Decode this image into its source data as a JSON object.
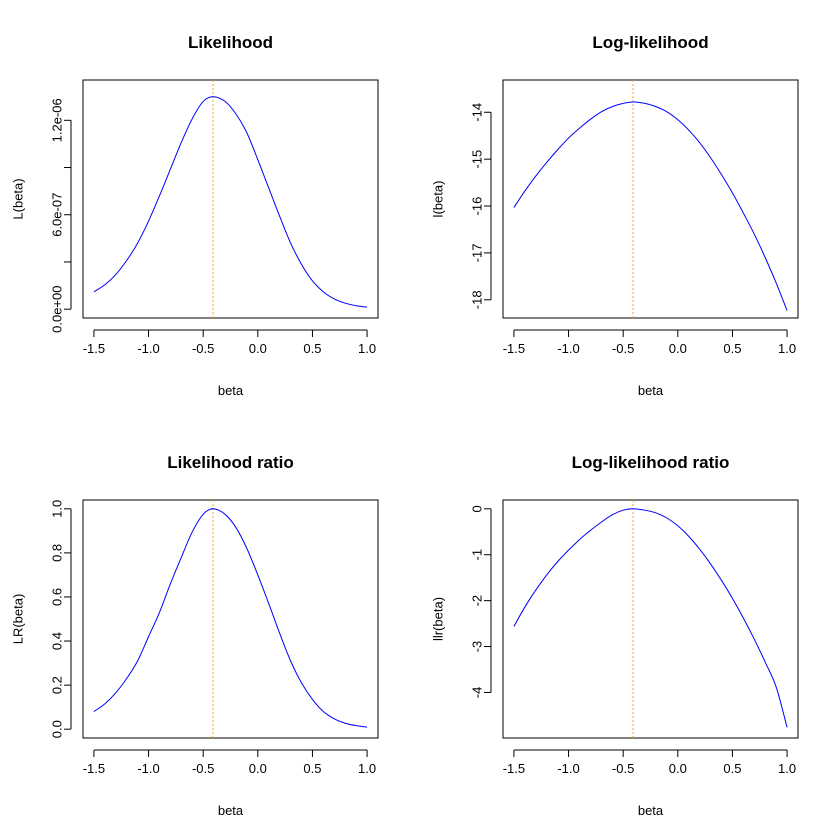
{
  "colors": {
    "curve": "#0000ff",
    "mle_line": "#ffa500"
  },
  "chart_data": [
    {
      "type": "line",
      "title": "Likelihood",
      "xlabel": "beta",
      "ylabel": "L(beta)",
      "xlim": [
        -1.5,
        1.0
      ],
      "ylim": [
        0,
        1.4e-06
      ],
      "x_ticks": [
        -1.5,
        -1.0,
        -0.5,
        0.0,
        0.5,
        1.0
      ],
      "x_tick_labels": [
        "-1.5",
        "-1.0",
        "-0.5",
        "0.0",
        "0.5",
        "1.0"
      ],
      "y_ticks": [
        0,
        3e-07,
        6e-07,
        9e-07,
        1.2e-06
      ],
      "y_tick_labels": [
        "0.0e+00",
        "",
        "6.0e-07",
        "",
        "1.2e-06"
      ],
      "vline_x": -0.41,
      "grid": false,
      "series": [
        {
          "x": [
            -1.5,
            -1.4,
            -1.3,
            -1.2,
            -1.1,
            -1.0,
            -0.9,
            -0.8,
            -0.7,
            -0.6,
            -0.5,
            -0.41,
            -0.3,
            -0.2,
            -0.1,
            0.0,
            0.1,
            0.2,
            0.3,
            0.4,
            0.5,
            0.6,
            0.7,
            0.8,
            0.9,
            1.0
          ],
          "y": [
            1.1e-07,
            1.55e-07,
            2.2e-07,
            3.1e-07,
            4.2e-07,
            5.6e-07,
            7.2e-07,
            8.9e-07,
            1.06e-06,
            1.21e-06,
            1.32e-06,
            1.35e-06,
            1.32e-06,
            1.24e-06,
            1.12e-06,
            9.5e-07,
            7.7e-07,
            5.9e-07,
            4.2e-07,
            2.85e-07,
            1.8e-07,
            1.1e-07,
            6.5e-08,
            3.8e-08,
            2.2e-08,
            1.3e-08
          ]
        }
      ]
    },
    {
      "type": "line",
      "title": "Log-likelihood",
      "xlabel": "beta",
      "ylabel": "l(beta)",
      "xlim": [
        -1.5,
        1.0
      ],
      "ylim": [
        -18.2,
        -13.5
      ],
      "x_ticks": [
        -1.5,
        -1.0,
        -0.5,
        0.0,
        0.5,
        1.0
      ],
      "x_tick_labels": [
        "-1.5",
        "-1.0",
        "-0.5",
        "0.0",
        "0.5",
        "1.0"
      ],
      "y_ticks": [
        -18,
        -17,
        -16,
        -15,
        -14
      ],
      "y_tick_labels": [
        "-18",
        "-17",
        "-16",
        "-15",
        "-14"
      ],
      "vline_x": -0.41,
      "grid": false,
      "series": [
        {
          "x": [
            -1.5,
            -1.4,
            -1.3,
            -1.2,
            -1.1,
            -1.0,
            -0.9,
            -0.8,
            -0.7,
            -0.6,
            -0.5,
            -0.41,
            -0.3,
            -0.2,
            -0.1,
            0.0,
            0.1,
            0.2,
            0.3,
            0.4,
            0.5,
            0.6,
            0.7,
            0.8,
            0.9,
            1.0
          ],
          "y": [
            -16.03,
            -15.68,
            -15.36,
            -15.07,
            -14.8,
            -14.55,
            -14.34,
            -14.15,
            -13.99,
            -13.88,
            -13.81,
            -13.78,
            -13.81,
            -13.88,
            -13.99,
            -14.16,
            -14.38,
            -14.65,
            -14.97,
            -15.33,
            -15.72,
            -16.15,
            -16.6,
            -17.1,
            -17.64,
            -18.23
          ]
        }
      ]
    },
    {
      "type": "line",
      "title": "Likelihood ratio",
      "xlabel": "beta",
      "ylabel": "LR(beta)",
      "xlim": [
        -1.5,
        1.0
      ],
      "ylim": [
        0,
        1.0
      ],
      "x_ticks": [
        -1.5,
        -1.0,
        -0.5,
        0.0,
        0.5,
        1.0
      ],
      "x_tick_labels": [
        "-1.5",
        "-1.0",
        "-0.5",
        "0.0",
        "0.5",
        "1.0"
      ],
      "y_ticks": [
        0.0,
        0.2,
        0.4,
        0.6,
        0.8,
        1.0
      ],
      "y_tick_labels": [
        "0.0",
        "0.2",
        "0.4",
        "0.6",
        "0.8",
        "1.0"
      ],
      "vline_x": -0.41,
      "grid": false,
      "series": [
        {
          "x": [
            -1.5,
            -1.4,
            -1.3,
            -1.2,
            -1.1,
            -1.0,
            -0.9,
            -0.8,
            -0.7,
            -0.6,
            -0.5,
            -0.41,
            -0.3,
            -0.2,
            -0.1,
            0.0,
            0.1,
            0.2,
            0.3,
            0.4,
            0.5,
            0.6,
            0.7,
            0.8,
            0.9,
            1.0
          ],
          "y": [
            0.08,
            0.115,
            0.165,
            0.23,
            0.31,
            0.42,
            0.53,
            0.66,
            0.78,
            0.895,
            0.975,
            1.0,
            0.975,
            0.915,
            0.82,
            0.7,
            0.57,
            0.435,
            0.31,
            0.21,
            0.135,
            0.08,
            0.047,
            0.027,
            0.016,
            0.009
          ]
        }
      ]
    },
    {
      "type": "line",
      "title": "Log-likelihood ratio",
      "xlabel": "beta",
      "ylabel": "llr(beta)",
      "xlim": [
        -1.5,
        1.0
      ],
      "ylim": [
        -4.8,
        0
      ],
      "x_ticks": [
        -1.5,
        -1.0,
        -0.5,
        0.0,
        0.5,
        1.0
      ],
      "x_tick_labels": [
        "-1.5",
        "-1.0",
        "-0.5",
        "0.0",
        "0.5",
        "1.0"
      ],
      "y_ticks": [
        -4,
        -3,
        -2,
        -1,
        0
      ],
      "y_tick_labels": [
        "-4",
        "-3",
        "-2",
        "-1",
        "0"
      ],
      "vline_x": -0.41,
      "grid": false,
      "series": [
        {
          "x": [
            -1.5,
            -1.4,
            -1.3,
            -1.2,
            -1.1,
            -1.0,
            -0.9,
            -0.8,
            -0.7,
            -0.6,
            -0.5,
            -0.41,
            -0.3,
            -0.2,
            -0.1,
            0.0,
            0.1,
            0.2,
            0.3,
            0.4,
            0.5,
            0.6,
            0.7,
            0.8,
            0.9,
            1.0
          ],
          "y": [
            -2.56,
            -2.14,
            -1.77,
            -1.44,
            -1.15,
            -0.9,
            -0.67,
            -0.47,
            -0.29,
            -0.13,
            -0.03,
            0.0,
            -0.03,
            -0.09,
            -0.2,
            -0.37,
            -0.6,
            -0.88,
            -1.2,
            -1.56,
            -1.95,
            -2.38,
            -2.84,
            -3.34,
            -3.88,
            -4.76
          ]
        }
      ]
    }
  ]
}
